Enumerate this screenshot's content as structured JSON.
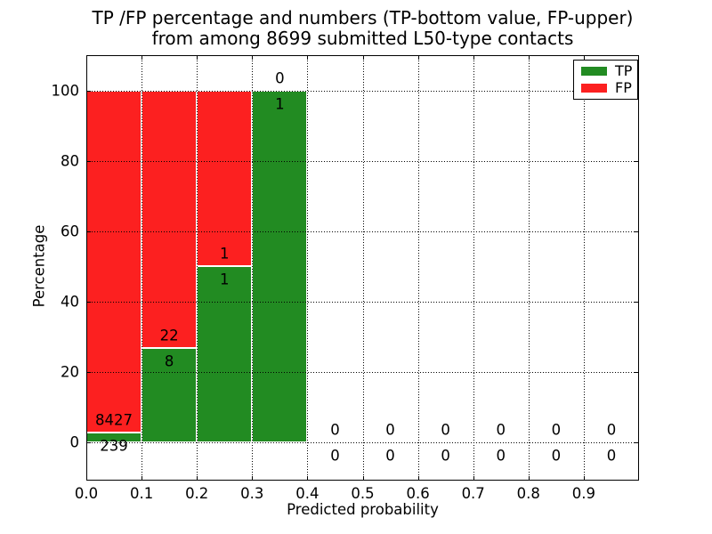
{
  "figure": {
    "title_line1": "TP /FP percentage and numbers (TP-bottom value, FP-upper)",
    "title_line2": "from among 8699 submitted L50-type contacts",
    "xlabel": "Predicted probability",
    "ylabel": "Percentage",
    "background_color": "#ffffff",
    "text_color": "#000000"
  },
  "legend": {
    "position": "upper right",
    "entries": [
      {
        "label": "TP",
        "color": "#228b22"
      },
      {
        "label": "FP",
        "color": "#fc2020"
      }
    ]
  },
  "chart_data": {
    "type": "bar",
    "stacked": true,
    "title": "TP /FP percentage and numbers (TP-bottom value, FP-upper) from among 8699 submitted L50-type contacts",
    "xlabel": "Predicted probability",
    "ylabel": "Percentage",
    "total_submitted_contacts": 8699,
    "xlim": [
      0.0,
      1.0
    ],
    "ylim": [
      -11,
      110
    ],
    "grid": true,
    "grid_style": "dotted",
    "legend_position": "upper right",
    "tp_color": "#228b22",
    "fp_color": "#fc2020",
    "x_ticks": [
      {
        "value": 0.0,
        "label": "0.0"
      },
      {
        "value": 0.1,
        "label": "0.1"
      },
      {
        "value": 0.2,
        "label": "0.2"
      },
      {
        "value": 0.3,
        "label": "0.3"
      },
      {
        "value": 0.4,
        "label": "0.4"
      },
      {
        "value": 0.5,
        "label": "0.5"
      },
      {
        "value": 0.6,
        "label": "0.6"
      },
      {
        "value": 0.7,
        "label": "0.7"
      },
      {
        "value": 0.8,
        "label": "0.8"
      },
      {
        "value": 0.9,
        "label": "0.9"
      }
    ],
    "y_ticks": [
      {
        "value": 0,
        "label": "0"
      },
      {
        "value": 20,
        "label": "20"
      },
      {
        "value": 40,
        "label": "40"
      },
      {
        "value": 60,
        "label": "60"
      },
      {
        "value": 80,
        "label": "80"
      },
      {
        "value": 100,
        "label": "100"
      }
    ],
    "series": [
      {
        "name": "TP",
        "color": "#228b22"
      },
      {
        "name": "FP",
        "color": "#fc2020"
      }
    ],
    "bins": [
      {
        "x0": 0.0,
        "x1": 0.1,
        "tp_count": 239,
        "fp_count": 8427,
        "tp_pct": 2.76,
        "fp_pct": 97.24
      },
      {
        "x0": 0.1,
        "x1": 0.2,
        "tp_count": 8,
        "fp_count": 22,
        "tp_pct": 26.67,
        "fp_pct": 73.33
      },
      {
        "x0": 0.2,
        "x1": 0.3,
        "tp_count": 1,
        "fp_count": 1,
        "tp_pct": 50.0,
        "fp_pct": 50.0
      },
      {
        "x0": 0.3,
        "x1": 0.4,
        "tp_count": 1,
        "fp_count": 0,
        "tp_pct": 100.0,
        "fp_pct": 0.0
      },
      {
        "x0": 0.4,
        "x1": 0.5,
        "tp_count": 0,
        "fp_count": 0,
        "tp_pct": 0.0,
        "fp_pct": 0.0
      },
      {
        "x0": 0.5,
        "x1": 0.6,
        "tp_count": 0,
        "fp_count": 0,
        "tp_pct": 0.0,
        "fp_pct": 0.0
      },
      {
        "x0": 0.6,
        "x1": 0.7,
        "tp_count": 0,
        "fp_count": 0,
        "tp_pct": 0.0,
        "fp_pct": 0.0
      },
      {
        "x0": 0.7,
        "x1": 0.8,
        "tp_count": 0,
        "fp_count": 0,
        "tp_pct": 0.0,
        "fp_pct": 0.0
      },
      {
        "x0": 0.8,
        "x1": 0.9,
        "tp_count": 0,
        "fp_count": 0,
        "tp_pct": 0.0,
        "fp_pct": 0.0
      },
      {
        "x0": 0.9,
        "x1": 1.0,
        "tp_count": 0,
        "fp_count": 0,
        "tp_pct": 0.0,
        "fp_pct": 0.0
      }
    ]
  }
}
